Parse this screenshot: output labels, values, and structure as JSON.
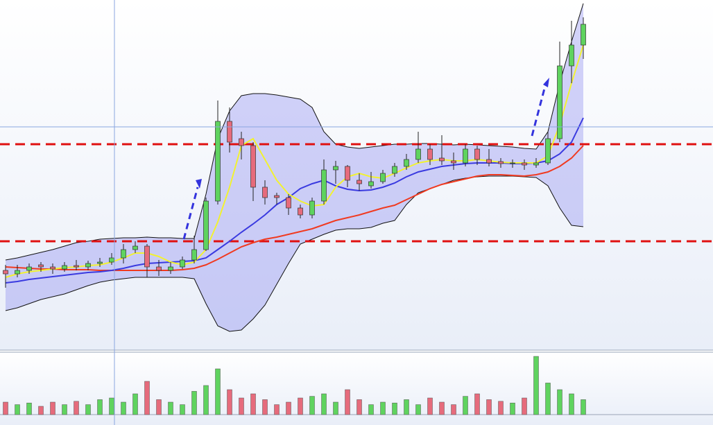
{
  "chart_data": {
    "type": "candlestick",
    "ylim": [
      0,
      500
    ],
    "open": [
      110,
      105,
      110,
      118,
      115,
      112,
      117,
      115,
      120,
      122,
      128,
      140,
      145,
      115,
      110,
      115,
      125,
      140,
      210,
      325,
      300,
      290,
      230,
      218,
      215,
      200,
      190,
      210,
      255,
      260,
      240,
      232,
      238,
      250,
      260,
      270,
      285,
      272,
      268,
      265,
      285,
      270,
      267,
      264,
      265,
      262,
      265,
      300,
      405,
      435
    ],
    "high": [
      118,
      118,
      120,
      122,
      120,
      122,
      125,
      124,
      128,
      135,
      148,
      152,
      148,
      125,
      122,
      130,
      160,
      215,
      355,
      345,
      310,
      295,
      240,
      222,
      220,
      205,
      215,
      270,
      268,
      262,
      250,
      252,
      255,
      265,
      278,
      310,
      292,
      305,
      280,
      292,
      290,
      285,
      272,
      270,
      270,
      272,
      310,
      440,
      470,
      475
    ],
    "low": [
      85,
      100,
      105,
      108,
      105,
      108,
      110,
      110,
      115,
      118,
      120,
      135,
      100,
      102,
      105,
      112,
      120,
      138,
      205,
      280,
      270,
      210,
      205,
      205,
      190,
      185,
      185,
      205,
      235,
      230,
      225,
      228,
      235,
      245,
      255,
      265,
      262,
      262,
      255,
      260,
      262,
      260,
      258,
      258,
      255,
      258,
      262,
      295,
      380,
      415
    ],
    "close": [
      105,
      110,
      115,
      115,
      112,
      117,
      115,
      120,
      122,
      128,
      140,
      145,
      115,
      110,
      115,
      125,
      140,
      210,
      325,
      295,
      290,
      230,
      215,
      215,
      200,
      190,
      210,
      255,
      260,
      240,
      235,
      238,
      250,
      260,
      270,
      285,
      270,
      268,
      265,
      285,
      270,
      265,
      264,
      265,
      262,
      265,
      300,
      405,
      435,
      465
    ],
    "upper_band": [
      125,
      128,
      132,
      136,
      140,
      145,
      150,
      152,
      155,
      156,
      157,
      157,
      158,
      157,
      157,
      156,
      156,
      220,
      300,
      340,
      362,
      365,
      365,
      363,
      360,
      357,
      345,
      310,
      292,
      288,
      286,
      288,
      290,
      292,
      292,
      293,
      293,
      292,
      291,
      292,
      291,
      290,
      289,
      288,
      286,
      285,
      310,
      380,
      440,
      495
    ],
    "lower_band": [
      52,
      56,
      62,
      68,
      72,
      76,
      82,
      88,
      93,
      96,
      98,
      100,
      100,
      100,
      100,
      100,
      98,
      62,
      30,
      22,
      24,
      40,
      60,
      90,
      120,
      148,
      155,
      162,
      168,
      170,
      170,
      172,
      178,
      182,
      205,
      222,
      228,
      234,
      240,
      243,
      245,
      246,
      246,
      246,
      245,
      244,
      232,
      200,
      175,
      173
    ],
    "ma_fast": [
      100,
      105,
      108,
      110,
      112,
      114,
      115,
      117,
      118,
      122,
      128,
      135,
      135,
      130,
      122,
      118,
      122,
      140,
      180,
      230,
      290,
      300,
      270,
      240,
      220,
      210,
      203,
      205,
      230,
      245,
      250,
      245,
      243,
      250,
      258,
      265,
      268,
      270,
      268,
      268,
      270,
      268,
      266,
      265,
      265,
      265,
      275,
      320,
      380,
      435
    ],
    "ma_mid": [
      92,
      94,
      97,
      99,
      101,
      103,
      105,
      107,
      108,
      110,
      113,
      117,
      120,
      121,
      122,
      123,
      124,
      128,
      140,
      152,
      165,
      177,
      190,
      205,
      215,
      228,
      235,
      240,
      232,
      227,
      225,
      226,
      230,
      236,
      245,
      252,
      256,
      260,
      262,
      264,
      265,
      265,
      265,
      264,
      264,
      265,
      268,
      278,
      295,
      330
    ],
    "ma_slow": [
      115,
      114,
      113,
      112,
      112,
      111,
      111,
      111,
      110,
      110,
      110,
      110,
      110,
      110,
      110,
      111,
      113,
      118,
      126,
      135,
      144,
      150,
      155,
      158,
      162,
      166,
      170,
      176,
      182,
      186,
      190,
      195,
      200,
      204,
      212,
      220,
      228,
      234,
      238,
      242,
      246,
      248,
      248,
      247,
      246,
      248,
      252,
      260,
      272,
      290
    ],
    "volume": [
      15,
      12,
      14,
      10,
      15,
      12,
      16,
      12,
      18,
      20,
      15,
      25,
      40,
      18,
      15,
      12,
      28,
      35,
      55,
      30,
      20,
      25,
      18,
      12,
      15,
      20,
      22,
      25,
      15,
      30,
      18,
      12,
      15,
      14,
      18,
      12,
      20,
      15,
      12,
      22,
      25,
      18,
      16,
      14,
      20,
      70,
      38,
      30,
      25,
      18
    ],
    "volume_ylim": [
      0,
      75
    ],
    "levels": [
      292,
      152
    ],
    "colors": {
      "up": "#5fd35f",
      "down": "#e66b7c",
      "band": "#8c8cf0",
      "ma_fast": "#f2f230",
      "ma_mid": "#3a3ae0",
      "ma_slow": "#f03a20",
      "level": "#e01010"
    }
  }
}
